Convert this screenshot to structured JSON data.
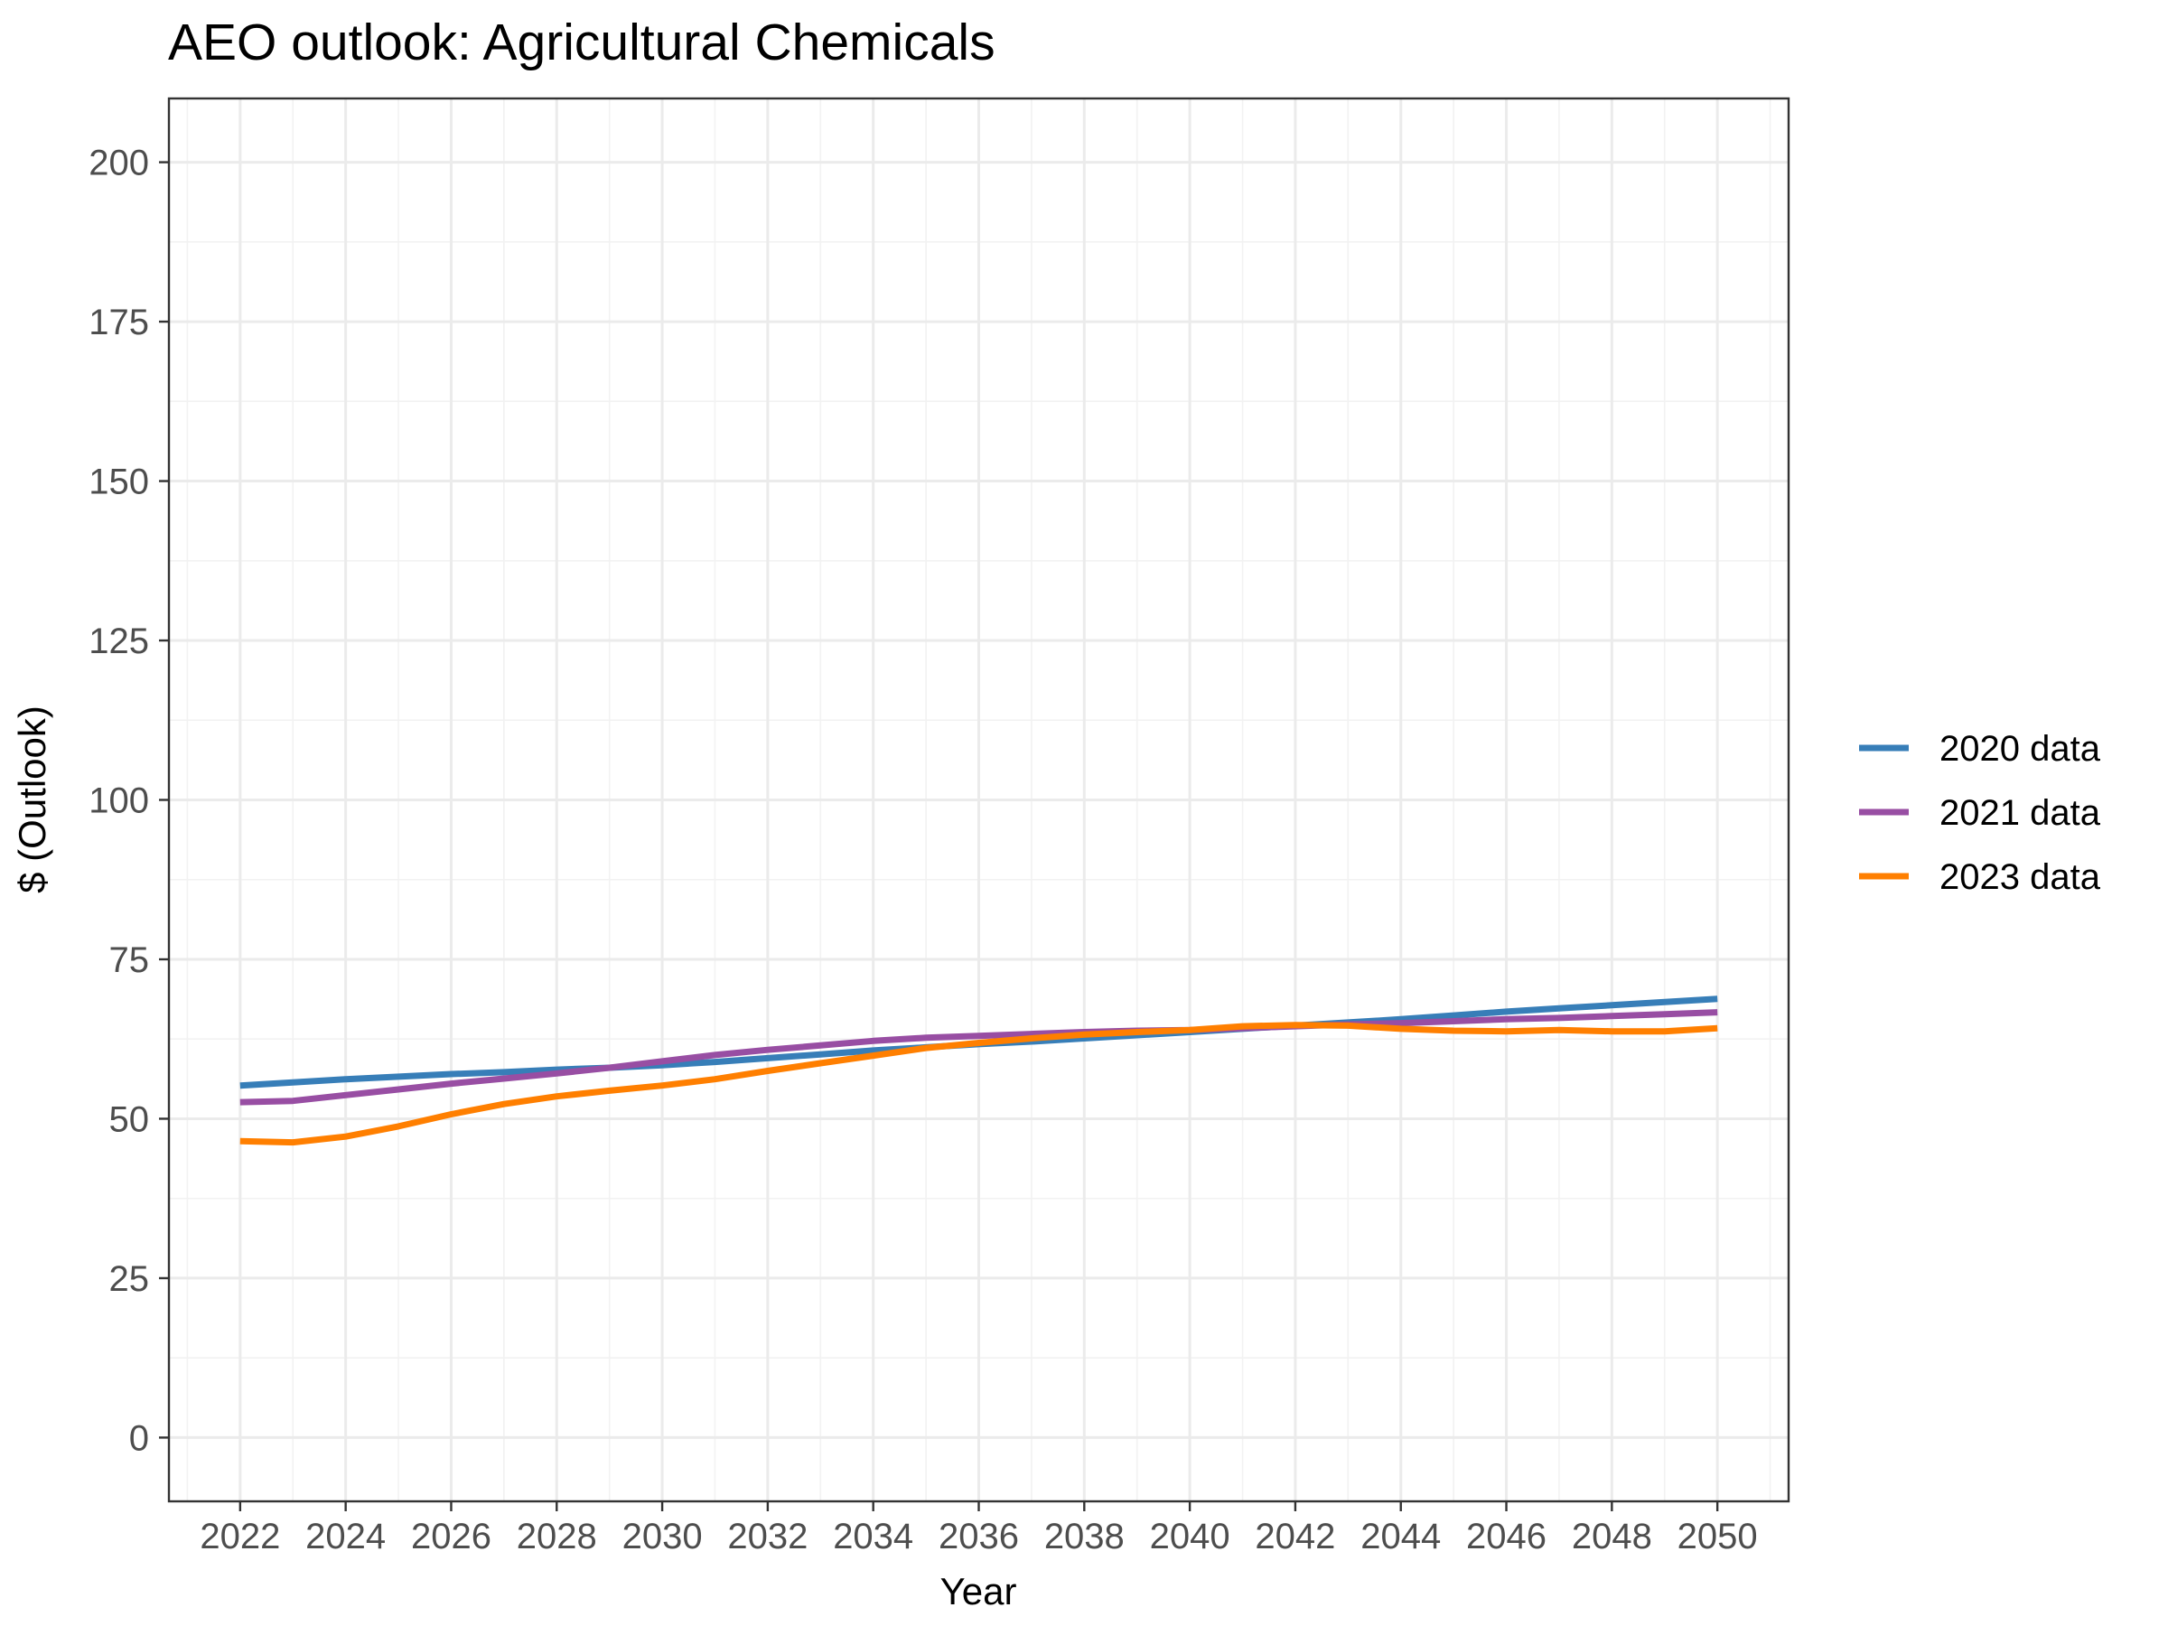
{
  "chart_data": {
    "type": "line",
    "title": "AEO outlook: Agricultural Chemicals",
    "xlabel": "Year",
    "ylabel": "$ (Outlook)",
    "xlim": [
      2020.65,
      2051.35
    ],
    "ylim": [
      -10,
      210
    ],
    "x_ticks": [
      2022,
      2024,
      2026,
      2028,
      2030,
      2032,
      2034,
      2036,
      2038,
      2040,
      2042,
      2044,
      2046,
      2048,
      2050
    ],
    "y_ticks": [
      0,
      25,
      50,
      75,
      100,
      125,
      150,
      175,
      200
    ],
    "grid": true,
    "legend_position": "right",
    "x": [
      2022,
      2023,
      2024,
      2025,
      2026,
      2027,
      2028,
      2029,
      2030,
      2031,
      2032,
      2033,
      2034,
      2035,
      2036,
      2037,
      2038,
      2039,
      2040,
      2041,
      2042,
      2043,
      2044,
      2045,
      2046,
      2047,
      2048,
      2049,
      2050
    ],
    "series": [
      {
        "name": "2020 data",
        "color": "#377EB8",
        "values": [
          55.2,
          55.7,
          56.2,
          56.6,
          57.0,
          57.3,
          57.7,
          58.0,
          58.4,
          58.9,
          59.5,
          60.1,
          60.7,
          61.2,
          61.7,
          62.1,
          62.6,
          63.1,
          63.6,
          64.1,
          64.6,
          65.1,
          65.6,
          66.2,
          66.8,
          67.3,
          67.8,
          68.3,
          68.8
        ]
      },
      {
        "name": "2021 data",
        "color": "#984EA3",
        "values": [
          52.6,
          52.8,
          53.7,
          54.6,
          55.5,
          56.3,
          57.1,
          58.0,
          59.0,
          60.0,
          60.8,
          61.5,
          62.2,
          62.7,
          63.0,
          63.3,
          63.6,
          63.8,
          63.9,
          64.2,
          64.5,
          64.8,
          65.0,
          65.3,
          65.6,
          65.8,
          66.1,
          66.4,
          66.7
        ]
      },
      {
        "name": "2023 data",
        "color": "#FF7F00",
        "values": [
          46.5,
          46.3,
          47.2,
          48.8,
          50.7,
          52.3,
          53.5,
          54.4,
          55.2,
          56.2,
          57.5,
          58.7,
          59.9,
          61.1,
          61.9,
          62.6,
          63.2,
          63.6,
          63.9,
          64.5,
          64.7,
          64.6,
          64.1,
          63.8,
          63.7,
          63.9,
          63.7,
          63.7,
          64.2
        ]
      }
    ]
  }
}
